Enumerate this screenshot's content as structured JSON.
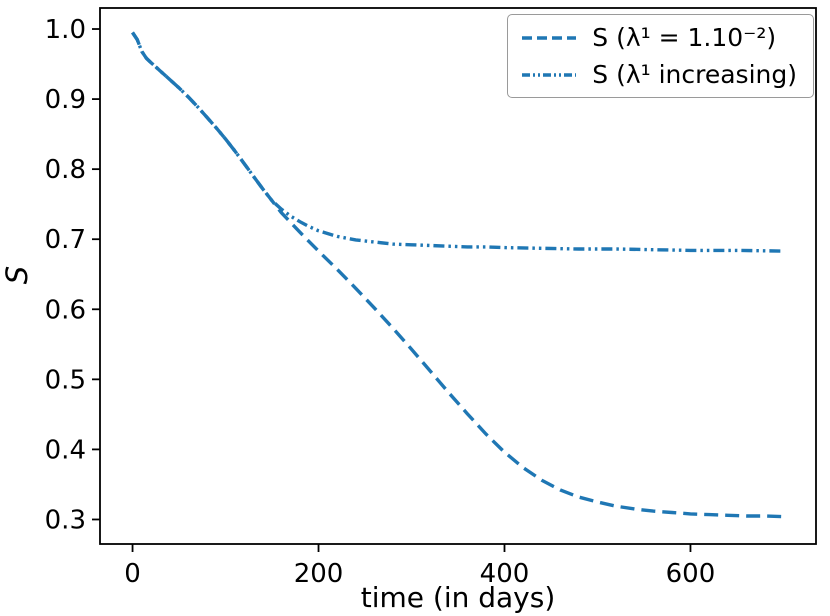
{
  "figure": {
    "background": "#ffffff"
  },
  "chart_data": {
    "type": "line",
    "title": "",
    "xlabel": "time (in days)",
    "ylabel": "S",
    "xlim": [
      -35,
      735
    ],
    "ylim": [
      0.265,
      1.03
    ],
    "x_ticks": [
      0,
      200,
      400,
      600
    ],
    "y_ticks": [
      1.0,
      0.9,
      0.8,
      0.7,
      0.6,
      0.5,
      0.4,
      0.3
    ],
    "grid": false,
    "legend_position": "upper right",
    "line_color": "#1f77b4",
    "series": [
      {
        "name": "S (λ¹ = 1.10⁻²)",
        "style": "dashed",
        "x": [
          0,
          5,
          10,
          15,
          20,
          30,
          40,
          50,
          60,
          70,
          80,
          90,
          100,
          110,
          120,
          130,
          140,
          150,
          160,
          180,
          200,
          220,
          240,
          260,
          280,
          300,
          320,
          340,
          360,
          380,
          400,
          420,
          440,
          460,
          480,
          500,
          520,
          540,
          560,
          580,
          600,
          620,
          640,
          660,
          680,
          700
        ],
        "y": [
          0.995,
          0.985,
          0.968,
          0.958,
          0.952,
          0.94,
          0.928,
          0.916,
          0.903,
          0.889,
          0.874,
          0.859,
          0.843,
          0.826,
          0.808,
          0.79,
          0.772,
          0.755,
          0.738,
          0.71,
          0.683,
          0.657,
          0.63,
          0.602,
          0.573,
          0.543,
          0.512,
          0.481,
          0.451,
          0.422,
          0.396,
          0.374,
          0.356,
          0.342,
          0.332,
          0.325,
          0.319,
          0.315,
          0.312,
          0.31,
          0.308,
          0.307,
          0.306,
          0.305,
          0.305,
          0.304
        ]
      },
      {
        "name": "S (λ¹ increasing)",
        "style": "dashdotdot",
        "x": [
          0,
          5,
          10,
          15,
          20,
          30,
          40,
          50,
          60,
          70,
          80,
          90,
          100,
          110,
          120,
          130,
          140,
          150,
          160,
          170,
          180,
          190,
          200,
          220,
          240,
          260,
          280,
          300,
          320,
          340,
          360,
          380,
          400,
          440,
          480,
          520,
          560,
          600,
          650,
          700
        ],
        "y": [
          0.995,
          0.985,
          0.968,
          0.958,
          0.952,
          0.94,
          0.928,
          0.916,
          0.903,
          0.889,
          0.874,
          0.859,
          0.843,
          0.826,
          0.808,
          0.79,
          0.772,
          0.755,
          0.743,
          0.733,
          0.725,
          0.718,
          0.712,
          0.704,
          0.699,
          0.696,
          0.693,
          0.692,
          0.691,
          0.69,
          0.689,
          0.689,
          0.688,
          0.687,
          0.686,
          0.686,
          0.685,
          0.684,
          0.684,
          0.683
        ]
      }
    ]
  }
}
